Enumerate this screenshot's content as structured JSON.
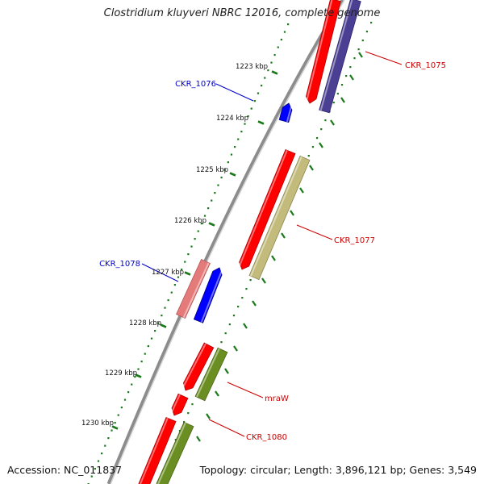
{
  "title": "Clostridium kluyveri NBRC 12016, complete genome",
  "accession": "Accession: NC_011837",
  "summary": "Topology: circular; Length: 3,896,121 bp; Genes: 3,549",
  "colors": {
    "backbone": "#8c8c8c",
    "tick": "#1a7a1a",
    "forward_gene": "#ff0000",
    "reverse_gene": "#0000ff",
    "forward_label": "#cc0000",
    "reverse_label": "#0000cc"
  },
  "ruler": [
    {
      "label": "1223 kbp"
    },
    {
      "label": "1224 kbp"
    },
    {
      "label": "1225 kbp"
    },
    {
      "label": "1226 kbp"
    },
    {
      "label": "1227 kbp"
    },
    {
      "label": "1228 kbp"
    },
    {
      "label": "1229 kbp"
    },
    {
      "label": "1230 kbp"
    }
  ],
  "gene_labels": [
    {
      "name": "CKR_1075",
      "strand": "forward"
    },
    {
      "name": "CKR_1076",
      "strand": "reverse"
    },
    {
      "name": "CKR_1077",
      "strand": "forward"
    },
    {
      "name": "CKR_1078",
      "strand": "reverse"
    },
    {
      "name": "mraW",
      "strand": "forward"
    },
    {
      "name": "CKR_1080",
      "strand": "forward"
    }
  ]
}
